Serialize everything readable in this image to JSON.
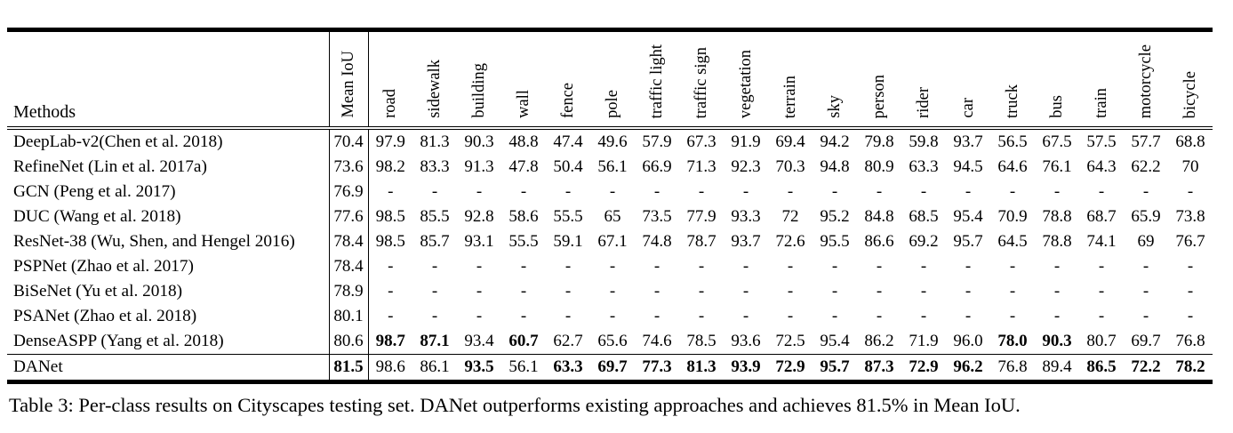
{
  "caption": "Table 3: Per-class results on Cityscapes testing set. DANet outperforms existing approaches and achieves 81.5% in Mean IoU.",
  "colors": {
    "text": "#000000",
    "background": "#ffffff",
    "rules": "#000000"
  },
  "table": {
    "methods_header": "Methods",
    "mean_iou_header": "Mean IoU",
    "class_columns": [
      "road",
      "sidewalk",
      "building",
      "wall",
      "fence",
      "pole",
      "traffic light",
      "traffic sign",
      "vegetation",
      "terrain",
      "sky",
      "person",
      "rider",
      "car",
      "truck",
      "bus",
      "train",
      "motorcycle",
      "bicycle"
    ],
    "rows": [
      {
        "method": "DeepLab-v2(Chen et al. 2018)",
        "mean_iou": "70.4",
        "mean_iou_bold": false,
        "separator_top": false,
        "values": [
          "97.9",
          "81.3",
          "90.3",
          "48.8",
          "47.4",
          "49.6",
          "57.9",
          "67.3",
          "91.9",
          "69.4",
          "94.2",
          "79.8",
          "59.8",
          "93.7",
          "56.5",
          "67.5",
          "57.5",
          "57.7",
          "68.8"
        ],
        "bold_indices": []
      },
      {
        "method": "RefineNet (Lin et al. 2017a)",
        "mean_iou": "73.6",
        "mean_iou_bold": false,
        "separator_top": false,
        "values": [
          "98.2",
          "83.3",
          "91.3",
          "47.8",
          "50.4",
          "56.1",
          "66.9",
          "71.3",
          "92.3",
          "70.3",
          "94.8",
          "80.9",
          "63.3",
          "94.5",
          "64.6",
          "76.1",
          "64.3",
          "62.2",
          "70"
        ],
        "bold_indices": []
      },
      {
        "method": "GCN (Peng et al. 2017)",
        "mean_iou": "76.9",
        "mean_iou_bold": false,
        "separator_top": false,
        "values": [
          "-",
          "-",
          "-",
          "-",
          "-",
          "-",
          "-",
          "-",
          "-",
          "-",
          "-",
          "-",
          "-",
          "-",
          "-",
          "-",
          "-",
          "-",
          "-"
        ],
        "bold_indices": []
      },
      {
        "method": "DUC (Wang et al. 2018)",
        "mean_iou": "77.6",
        "mean_iou_bold": false,
        "separator_top": false,
        "values": [
          "98.5",
          "85.5",
          "92.8",
          "58.6",
          "55.5",
          "65",
          "73.5",
          "77.9",
          "93.3",
          "72",
          "95.2",
          "84.8",
          "68.5",
          "95.4",
          "70.9",
          "78.8",
          "68.7",
          "65.9",
          "73.8"
        ],
        "bold_indices": []
      },
      {
        "method": "ResNet-38 (Wu, Shen, and Hengel 2016)",
        "mean_iou": "78.4",
        "mean_iou_bold": false,
        "separator_top": false,
        "values": [
          "98.5",
          "85.7",
          "93.1",
          "55.5",
          "59.1",
          "67.1",
          "74.8",
          "78.7",
          "93.7",
          "72.6",
          "95.5",
          "86.6",
          "69.2",
          "95.7",
          "64.5",
          "78.8",
          "74.1",
          "69",
          "76.7"
        ],
        "bold_indices": []
      },
      {
        "method": "PSPNet (Zhao et al. 2017)",
        "mean_iou": "78.4",
        "mean_iou_bold": false,
        "separator_top": false,
        "values": [
          "-",
          "-",
          "-",
          "-",
          "-",
          "-",
          "-",
          "-",
          "-",
          "-",
          "-",
          "-",
          "-",
          "-",
          "-",
          "-",
          "-",
          "-",
          "-"
        ],
        "bold_indices": []
      },
      {
        "method": "BiSeNet (Yu et al. 2018)",
        "mean_iou": "78.9",
        "mean_iou_bold": false,
        "separator_top": false,
        "values": [
          "-",
          "-",
          "-",
          "-",
          "-",
          "-",
          "-",
          "-",
          "-",
          "-",
          "-",
          "-",
          "-",
          "-",
          "-",
          "-",
          "-",
          "-",
          "-"
        ],
        "bold_indices": []
      },
      {
        "method": "PSANet (Zhao et al. 2018)",
        "mean_iou": "80.1",
        "mean_iou_bold": false,
        "separator_top": false,
        "values": [
          "-",
          "-",
          "-",
          "-",
          "-",
          "-",
          "-",
          "-",
          "-",
          "-",
          "-",
          "-",
          "-",
          "-",
          "-",
          "-",
          "-",
          "-",
          "-"
        ],
        "bold_indices": []
      },
      {
        "method": "DenseASPP (Yang et al. 2018)",
        "mean_iou": "80.6",
        "mean_iou_bold": false,
        "separator_top": false,
        "values": [
          "98.7",
          "87.1",
          "93.4",
          "60.7",
          "62.7",
          "65.6",
          "74.6",
          "78.5",
          "93.6",
          "72.5",
          "95.4",
          "86.2",
          "71.9",
          "96.0",
          "78.0",
          "90.3",
          "80.7",
          "69.7",
          "76.8"
        ],
        "bold_indices": [
          0,
          1,
          3,
          14,
          15
        ]
      },
      {
        "method": "DANet",
        "mean_iou": "81.5",
        "mean_iou_bold": true,
        "separator_top": true,
        "values": [
          "98.6",
          "86.1",
          "93.5",
          "56.1",
          "63.3",
          "69.7",
          "77.3",
          "81.3",
          "93.9",
          "72.9",
          "95.7",
          "87.3",
          "72.9",
          "96.2",
          "76.8",
          "89.4",
          "86.5",
          "72.2",
          "78.2"
        ],
        "bold_indices": [
          2,
          4,
          5,
          6,
          7,
          8,
          9,
          10,
          11,
          12,
          13,
          16,
          17,
          18
        ]
      }
    ]
  }
}
